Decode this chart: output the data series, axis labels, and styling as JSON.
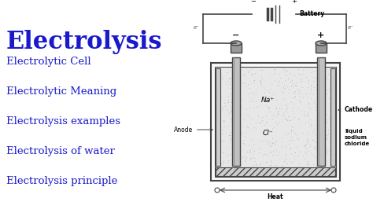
{
  "bg_color": "#ffffff",
  "title": "Electrolysis",
  "title_color": "#1a1acc",
  "title_fontsize": 22,
  "menu_items": [
    "Electrolytic Cell",
    "Electrolytic Meaning",
    "Electrolysis examples",
    "Electrolysis of water",
    "Electrolysis principle"
  ],
  "menu_color": "#1a1acc",
  "menu_fontsize": 9.5,
  "lc": "#444444",
  "diagram_bg": "#e8e8e8",
  "liquid_color": "#d0d0d0",
  "electrode_color": "#aaaaaa",
  "hatch_color": "#777777"
}
